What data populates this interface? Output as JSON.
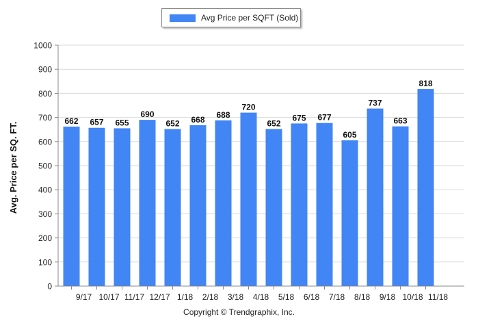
{
  "chart_data": {
    "type": "bar",
    "categories": [
      "9/17",
      "10/17",
      "11/17",
      "12/17",
      "1/18",
      "2/18",
      "3/18",
      "4/18",
      "5/18",
      "6/18",
      "7/18",
      "8/18",
      "9/18",
      "10/18",
      "11/18"
    ],
    "series": [
      {
        "name": "Avg Price per SQFT (Sold)",
        "values": [
          662,
          657,
          655,
          690,
          652,
          668,
          688,
          720,
          652,
          675,
          677,
          605,
          737,
          663,
          818
        ]
      }
    ],
    "ylabel": "Avg. Price per SQ. FT.",
    "xlabel": "",
    "ylim": [
      0,
      1000
    ],
    "yticks": [
      0,
      100,
      200,
      300,
      400,
      500,
      600,
      700,
      800,
      900,
      1000
    ],
    "grid": true,
    "legend_position": "top-center",
    "bar_color": "#4285f4",
    "data_labels": true
  },
  "footer": {
    "copyright": "Copyright © Trendgraphix, Inc."
  }
}
